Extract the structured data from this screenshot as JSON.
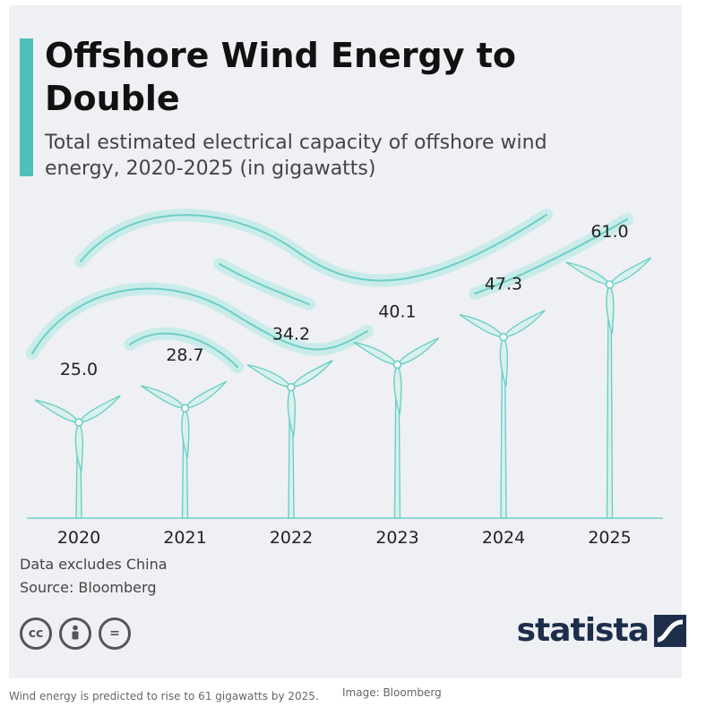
{
  "title": "Offshore Wind Energy to Double",
  "subtitle": "Total estimated electrical capacity of offshore wind energy, 2020-2025 (in gigawatts)",
  "notes": {
    "line1": "Data excludes China",
    "line2": "Source: Bloomberg"
  },
  "license_icons": [
    "cc-icon",
    "attribution-icon",
    "no-derivatives-icon"
  ],
  "license_labels": {
    "cc": "cc",
    "nd": "="
  },
  "brand": "statista",
  "caption": "Wind energy is predicted to rise to 61 gigawatts by 2025.",
  "credit": "Image: Bloomberg",
  "colors": {
    "accent": "#4ec0b8",
    "turbine_fill": "#d9f0ee",
    "turbine_stroke": "#6ccfc5",
    "wind_swirl": "#c9ecea",
    "brand": "#1e2e4a"
  },
  "chart_data": {
    "type": "bar",
    "categories": [
      "2020",
      "2021",
      "2022",
      "2023",
      "2024",
      "2025"
    ],
    "values": [
      25.0,
      28.7,
      34.2,
      40.1,
      47.3,
      61.0
    ],
    "value_labels": [
      "25.0",
      "28.7",
      "34.2",
      "40.1",
      "47.3",
      "61.0"
    ],
    "unit": "gigawatts",
    "ylim": [
      0,
      61.0
    ],
    "grid": false,
    "legend": "none"
  }
}
